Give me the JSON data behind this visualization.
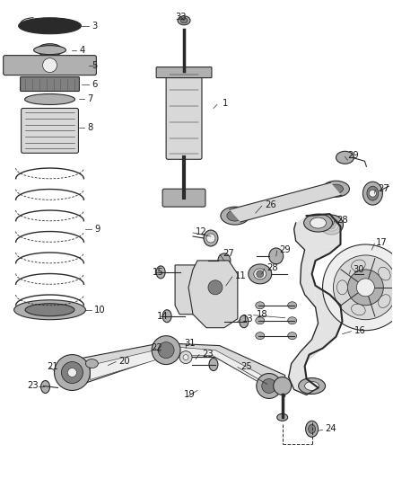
{
  "bg_color": "#ffffff",
  "line_color": "#2a2a2a",
  "label_color": "#1a1a1a",
  "fig_width": 4.38,
  "fig_height": 5.33,
  "dpi": 100,
  "component_color_light": "#d8d8d8",
  "component_color_mid": "#b0b0b0",
  "component_color_dark": "#808080",
  "component_color_very_light": "#eeeeee"
}
